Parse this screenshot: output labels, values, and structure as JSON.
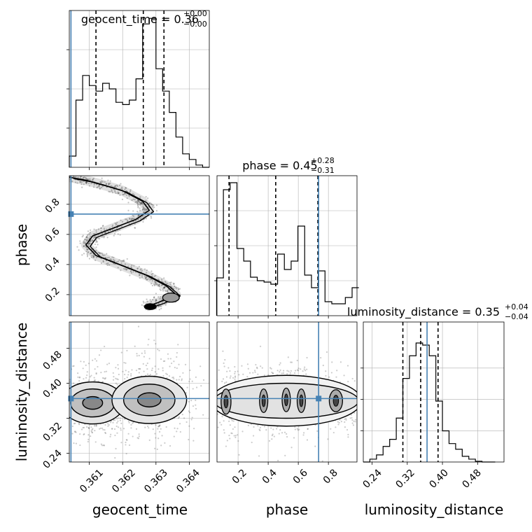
{
  "figure": {
    "type": "corner-plot"
  },
  "chart_data": [
    {
      "type": "histogram",
      "panel": "geocent_time-1d",
      "title": {
        "param": "geocent_time",
        "value": "0.36",
        "plus": "+0.00",
        "minus": "−0.00"
      },
      "xlim": [
        0.3604,
        0.3646
      ],
      "x": [
        0.3605,
        0.3607,
        0.3609,
        0.3611,
        0.3613,
        0.3615,
        0.3617,
        0.3619,
        0.3621,
        0.3623,
        0.3625,
        0.3627,
        0.3629,
        0.3631,
        0.3633,
        0.3635,
        0.3637,
        0.3639,
        0.3641,
        0.3643,
        0.3645
      ],
      "values": [
        10,
        60,
        82,
        73,
        68,
        75,
        70,
        58,
        56,
        60,
        79,
        128,
        133,
        88,
        68,
        49,
        27,
        12,
        7,
        2,
        0
      ],
      "quantiles": [
        0.3612,
        0.36262,
        0.36324
      ],
      "truth": 0.36045
    },
    {
      "type": "histogram",
      "panel": "phase-1d",
      "title": {
        "param": "phase",
        "value": "0.45",
        "plus": "+0.28",
        "minus": "−0.31"
      },
      "xlim": [
        0.06,
        0.99
      ],
      "x": [
        0.08,
        0.125,
        0.17,
        0.215,
        0.26,
        0.305,
        0.35,
        0.395,
        0.44,
        0.485,
        0.53,
        0.575,
        0.62,
        0.665,
        0.71,
        0.755,
        0.8,
        0.845,
        0.89,
        0.935,
        0.98
      ],
      "values": [
        54,
        180,
        190,
        96,
        78,
        55,
        50,
        48,
        45,
        88,
        66,
        78,
        128,
        58,
        40,
        64,
        20,
        17,
        17,
        26,
        40
      ],
      "xticks": [
        0.2,
        0.4,
        0.6,
        0.8
      ],
      "quantiles": [
        0.14,
        0.45,
        0.73
      ],
      "truth": 0.735
    },
    {
      "type": "histogram",
      "panel": "luminosity_distance-1d",
      "title": {
        "param": "luminosity_distance",
        "value": "0.35",
        "plus": "+0.04",
        "minus": "−0.04"
      },
      "xlim": [
        0.22,
        0.54
      ],
      "x": [
        0.2275,
        0.2425,
        0.2575,
        0.2725,
        0.2875,
        0.3025,
        0.3175,
        0.3325,
        0.3475,
        0.3625,
        0.3775,
        0.3925,
        0.4075,
        0.4225,
        0.4375,
        0.4525,
        0.4675,
        0.4825,
        0.4975,
        0.5125
      ],
      "values": [
        0,
        4,
        10,
        22,
        32,
        62,
        118,
        150,
        168,
        165,
        150,
        86,
        44,
        26,
        18,
        8,
        4,
        1,
        0,
        0
      ],
      "xticks": [
        0.24,
        0.32,
        0.4,
        0.48
      ],
      "quantiles": [
        0.31,
        0.3505,
        0.39
      ],
      "truth": 0.365
    },
    {
      "type": "scatter-contour",
      "panel": "geocent_time-vs-phase",
      "xlim": [
        0.3604,
        0.3646
      ],
      "ylim": [
        0.06,
        0.99
      ],
      "yticks": [
        0.2,
        0.4,
        0.6,
        0.8
      ],
      "path": [
        [
          0.3604,
          0.98
        ],
        [
          0.3609,
          0.96
        ],
        [
          0.3614,
          0.93
        ],
        [
          0.362,
          0.89
        ],
        [
          0.3626,
          0.82
        ],
        [
          0.3628,
          0.76
        ],
        [
          0.3624,
          0.7
        ],
        [
          0.3617,
          0.64
        ],
        [
          0.3611,
          0.59
        ],
        [
          0.3609,
          0.53
        ],
        [
          0.3612,
          0.46
        ],
        [
          0.3619,
          0.4
        ],
        [
          0.3627,
          0.33
        ],
        [
          0.3633,
          0.26
        ],
        [
          0.3636,
          0.2
        ],
        [
          0.3631,
          0.15
        ],
        [
          0.3627,
          0.12
        ]
      ],
      "truth": [
        0.36045,
        0.735
      ]
    },
    {
      "type": "scatter-contour",
      "panel": "geocent_time-vs-luminosity_distance",
      "xlim": [
        0.3604,
        0.3646
      ],
      "ylim": [
        0.22,
        0.54
      ],
      "xticks": [
        0.361,
        0.362,
        0.363,
        0.364
      ],
      "yticks": [
        0.24,
        0.32,
        0.4,
        0.48
      ],
      "clusters": [
        [
          0.3611,
          0.355,
          0.0006,
          0.032
        ],
        [
          0.3628,
          0.362,
          0.0007,
          0.036
        ]
      ],
      "truth": [
        0.36045,
        0.365
      ]
    },
    {
      "type": "scatter-contour",
      "panel": "phase-vs-luminosity_distance",
      "xlim": [
        0.06,
        0.99
      ],
      "ylim": [
        0.22,
        0.54
      ],
      "xticks": [
        0.2,
        0.4,
        0.6,
        0.8
      ],
      "clusters": [
        [
          0.12,
          0.358,
          0.06,
          0.032
        ],
        [
          0.37,
          0.36,
          0.05,
          0.03
        ],
        [
          0.52,
          0.362,
          0.05,
          0.03
        ],
        [
          0.62,
          0.36,
          0.05,
          0.03
        ],
        [
          0.85,
          0.36,
          0.08,
          0.028
        ]
      ],
      "truth": [
        0.735,
        0.365
      ]
    }
  ],
  "axis_labels": {
    "x_left": "geocent_time",
    "x_mid": "phase",
    "x_right": "luminosity_distance",
    "y_mid": "phase",
    "y_bottom": "luminosity_distance"
  },
  "tick_labels": {
    "time": [
      "0.361",
      "0.362",
      "0.363",
      "0.364"
    ],
    "phase": [
      "0.2",
      "0.4",
      "0.6",
      "0.8"
    ],
    "dist": [
      "0.24",
      "0.32",
      "0.40",
      "0.48"
    ]
  },
  "colors": {
    "truth": "#4682b4",
    "hist": "#000000",
    "grid": "#b0b0b0",
    "scatter": "#555555"
  }
}
